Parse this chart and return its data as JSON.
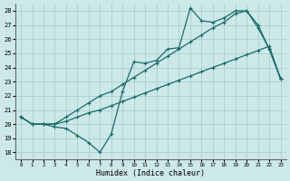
{
  "xlabel": "Humidex (Indice chaleur)",
  "bg_color": "#cde8e8",
  "grid_color": "#aacfcf",
  "line_color": "#1a6b6b",
  "xlim": [
    -0.5,
    23.5
  ],
  "ylim": [
    17.5,
    28.5
  ],
  "xticks": [
    0,
    1,
    2,
    3,
    4,
    5,
    6,
    7,
    8,
    9,
    10,
    11,
    12,
    13,
    14,
    15,
    16,
    17,
    18,
    19,
    20,
    21,
    22,
    23
  ],
  "yticks": [
    18,
    19,
    20,
    21,
    22,
    23,
    24,
    25,
    26,
    27,
    28
  ],
  "line1_x": [
    0,
    1,
    2,
    3,
    4,
    5,
    6,
    7,
    8,
    9,
    10,
    11,
    12,
    13,
    14,
    15,
    16,
    17,
    18,
    19,
    20,
    21,
    22,
    23
  ],
  "line1_y": [
    20.5,
    20.0,
    20.0,
    19.8,
    19.7,
    19.2,
    18.7,
    18.0,
    19.3,
    22.3,
    24.4,
    24.3,
    24.5,
    25.3,
    25.4,
    28.2,
    27.3,
    27.2,
    27.5,
    28.0,
    28.0,
    26.8,
    25.3,
    23.2
  ],
  "line2_x": [
    0,
    1,
    2,
    3,
    4,
    5,
    6,
    7,
    8,
    9,
    10,
    11,
    12,
    13,
    14,
    15,
    16,
    17,
    18,
    19,
    20,
    21,
    22,
    23
  ],
  "line2_y": [
    20.5,
    20.0,
    20.0,
    20.0,
    20.5,
    21.0,
    21.5,
    22.0,
    22.3,
    22.8,
    23.3,
    23.8,
    24.3,
    24.8,
    25.3,
    25.8,
    26.3,
    26.8,
    27.2,
    27.8,
    28.0,
    27.0,
    25.3,
    23.2
  ],
  "line3_x": [
    0,
    1,
    2,
    3,
    4,
    5,
    6,
    7,
    8,
    9,
    10,
    11,
    12,
    13,
    14,
    15,
    16,
    17,
    18,
    19,
    20,
    21,
    22,
    23
  ],
  "line3_y": [
    20.5,
    20.0,
    20.0,
    20.0,
    20.2,
    20.5,
    20.8,
    21.0,
    21.3,
    21.6,
    21.9,
    22.2,
    22.5,
    22.8,
    23.1,
    23.4,
    23.7,
    24.0,
    24.3,
    24.6,
    24.9,
    25.2,
    25.5,
    23.2
  ]
}
